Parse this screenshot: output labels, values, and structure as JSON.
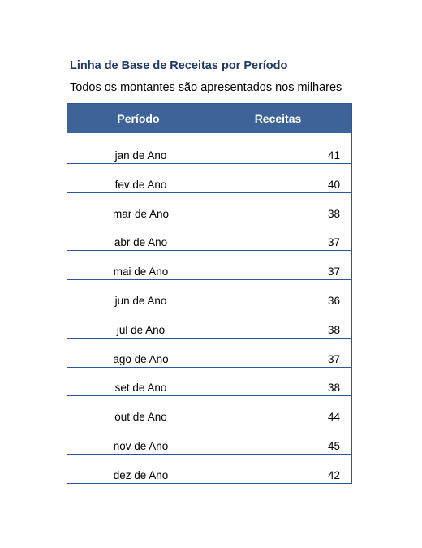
{
  "title": "Linha de Base de Receitas por Período",
  "subtitle": "Todos os montantes são apresentados nos milhares",
  "table": {
    "headers": {
      "period": "Período",
      "revenue": "Receitas"
    },
    "rows": [
      {
        "period": "jan de Ano",
        "revenue": "41"
      },
      {
        "period": "fev de Ano",
        "revenue": "40"
      },
      {
        "period": "mar de Ano",
        "revenue": "38"
      },
      {
        "period": "abr de Ano",
        "revenue": "37"
      },
      {
        "period": "mai de Ano",
        "revenue": "37"
      },
      {
        "period": "jun de Ano",
        "revenue": "36"
      },
      {
        "period": "jul de Ano",
        "revenue": "38"
      },
      {
        "period": "ago de Ano",
        "revenue": "37"
      },
      {
        "period": "set de Ano",
        "revenue": "38"
      },
      {
        "period": "out de Ano",
        "revenue": "44"
      },
      {
        "period": "nov de Ano",
        "revenue": "45"
      },
      {
        "period": "dez de Ano",
        "revenue": "42"
      }
    ]
  }
}
